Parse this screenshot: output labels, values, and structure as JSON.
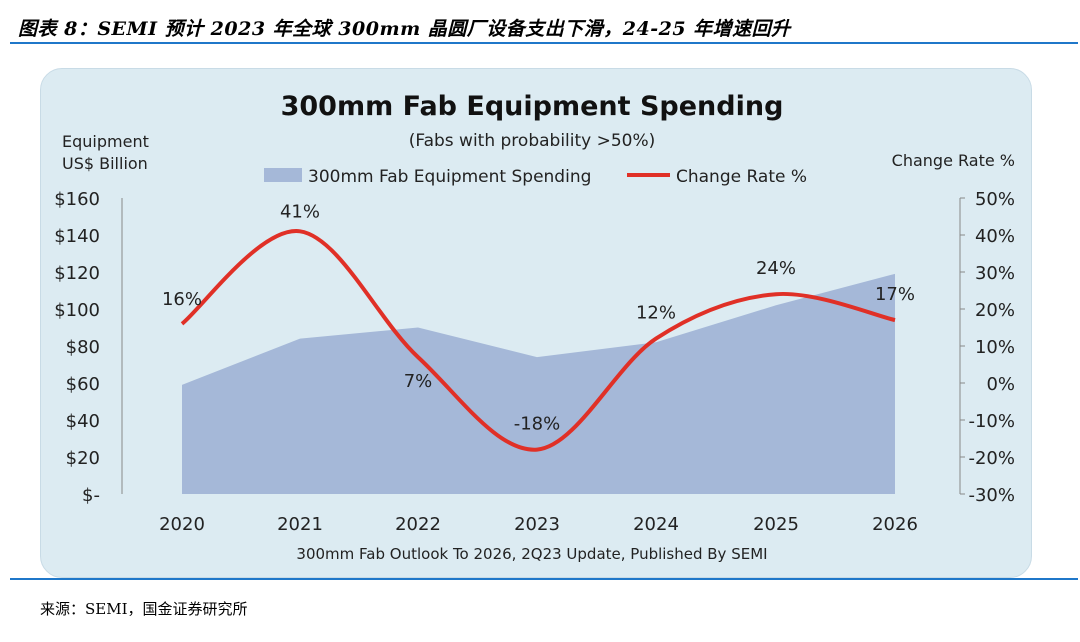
{
  "figure": {
    "caption": "图表 8：SEMI 预计 2023 年全球 300mm 晶圆厂设备支出下滑，24-25 年增速回升",
    "source": "来源：SEMI，国金证券研究所"
  },
  "chart_data": {
    "type": "area",
    "title": "300mm Fab Equipment Spending",
    "subtitle": "(Fabs with probability >50%)",
    "footer": "300mm Fab Outlook To 2026, 2Q23 Update, Published By SEMI",
    "left_axis_label": [
      "Equipment",
      "US$ Billion"
    ],
    "right_axis_label": "Change Rate %",
    "categories": [
      "2020",
      "2021",
      "2022",
      "2023",
      "2024",
      "2025",
      "2026"
    ],
    "series": [
      {
        "name": "300mm Fab Equipment Spending",
        "kind": "area",
        "axis": "left",
        "color": "#a5b8d8",
        "values": [
          59,
          84,
          90,
          74,
          82,
          102,
          119
        ]
      },
      {
        "name": "Change Rate %",
        "kind": "line",
        "axis": "right",
        "color": "#e03027",
        "values": [
          16,
          41,
          7,
          -18,
          12,
          24,
          17
        ],
        "labels": [
          "16%",
          "41%",
          "7%",
          "-18%",
          "12%",
          "24%",
          "17%"
        ]
      }
    ],
    "ylim_left": [
      0,
      160
    ],
    "yticks_left": [
      "$-",
      "$20",
      "$40",
      "$60",
      "$80",
      "$100",
      "$120",
      "$140",
      "$160"
    ],
    "ylim_right": [
      -30,
      50
    ],
    "yticks_right": [
      "-30%",
      "-20%",
      "-10%",
      "0%",
      "10%",
      "20%",
      "30%",
      "40%",
      "50%"
    ],
    "grid": false,
    "legend_position": "top-center"
  }
}
